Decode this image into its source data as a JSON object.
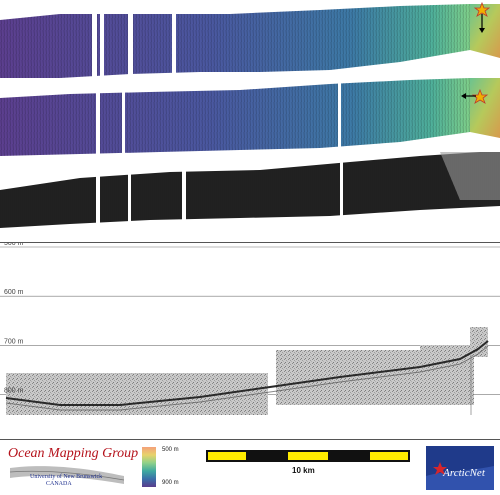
{
  "profile": {
    "depth_ticks": [
      {
        "value": 500,
        "label": "500 m"
      },
      {
        "value": 600,
        "label": "600 m"
      },
      {
        "value": 700,
        "label": "700 m"
      },
      {
        "value": 800,
        "label": "800 m"
      }
    ],
    "depth_range": [
      500,
      890
    ]
  },
  "colorbar": {
    "top_label": "500 m",
    "bottom_label": "900 m",
    "colors": [
      "#f5a17a",
      "#e7d36b",
      "#8ed18a",
      "#3fa9a0",
      "#3b6ea8",
      "#5a3d8c"
    ]
  },
  "scale_bar": {
    "label": "10 km",
    "colors": [
      "#ffec00",
      "#111111"
    ]
  },
  "logo": {
    "title": "Ocean Mapping Group",
    "line1": "University of New Brunswick",
    "line2": "CANADA"
  },
  "arcticnet": {
    "text": "ArcticNet"
  },
  "colors": {
    "swath_deep": "#5c3f8f",
    "swath_mid": "#3d7aa6",
    "swath_shallow": "#6fc7a0",
    "land": "#9bbf55",
    "marker": "#f0b000",
    "backscatter": "#1a1a1a"
  }
}
